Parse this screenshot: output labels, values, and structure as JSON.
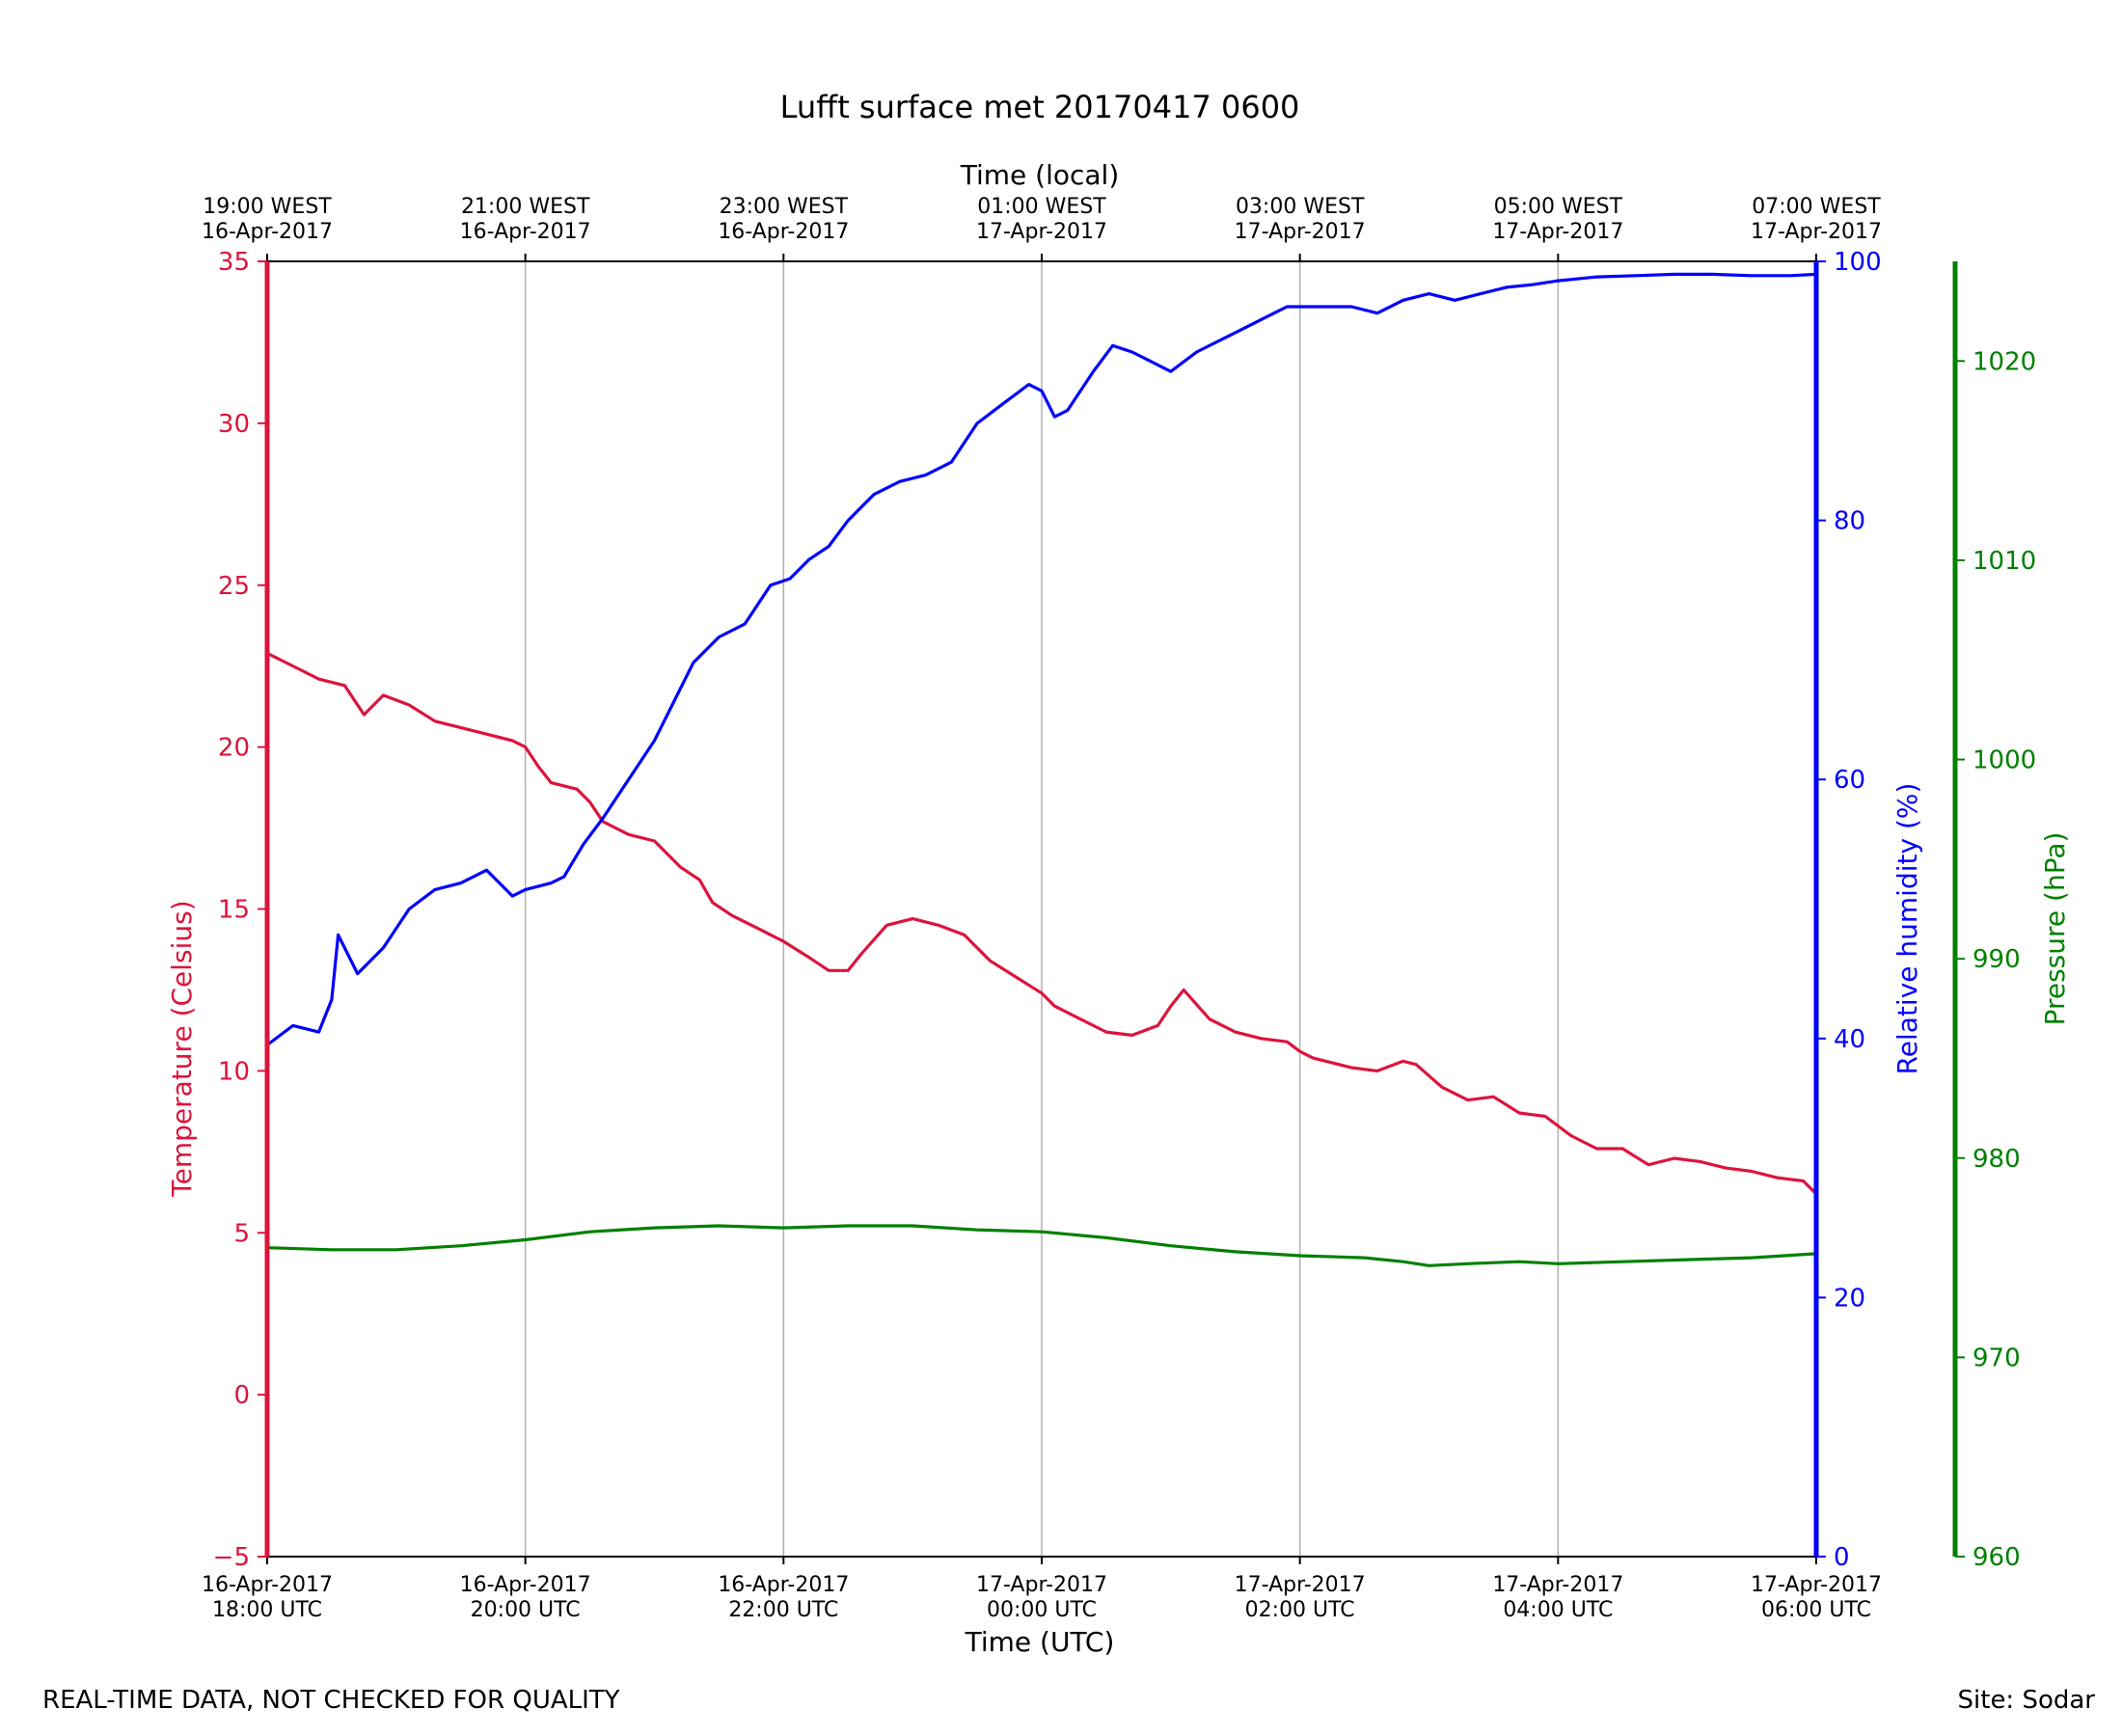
{
  "chart_data": {
    "type": "line",
    "title": "Lufft surface met 20170417 0600",
    "xlabel": "Time (UTC)",
    "x2label": "Time (local)",
    "xlim_hours_utc": [
      18,
      30
    ],
    "x_ticks": [
      {
        "hour": 18,
        "utc": [
          "16-Apr-2017",
          "18:00 UTC"
        ],
        "local": [
          "19:00 WEST",
          "16-Apr-2017"
        ]
      },
      {
        "hour": 20,
        "utc": [
          "16-Apr-2017",
          "20:00 UTC"
        ],
        "local": [
          "21:00 WEST",
          "16-Apr-2017"
        ]
      },
      {
        "hour": 22,
        "utc": [
          "16-Apr-2017",
          "22:00 UTC"
        ],
        "local": [
          "23:00 WEST",
          "16-Apr-2017"
        ]
      },
      {
        "hour": 24,
        "utc": [
          "17-Apr-2017",
          "00:00 UTC"
        ],
        "local": [
          "01:00 WEST",
          "17-Apr-2017"
        ]
      },
      {
        "hour": 26,
        "utc": [
          "17-Apr-2017",
          "02:00 UTC"
        ],
        "local": [
          "03:00 WEST",
          "17-Apr-2017"
        ]
      },
      {
        "hour": 28,
        "utc": [
          "17-Apr-2017",
          "04:00 UTC"
        ],
        "local": [
          "05:00 WEST",
          "17-Apr-2017"
        ]
      },
      {
        "hour": 30,
        "utc": [
          "17-Apr-2017",
          "06:00 UTC"
        ],
        "local": [
          "07:00 WEST",
          "17-Apr-2017"
        ]
      }
    ],
    "grid": "vertical",
    "axes": {
      "temperature": {
        "label": "Temperature (Celsius)",
        "color": "#dc143c",
        "ylim": [
          -5,
          35
        ],
        "ticks": [
          -5,
          0,
          5,
          10,
          15,
          20,
          25,
          30,
          35
        ],
        "tick_labels": [
          "−5",
          "0",
          "5",
          "10",
          "15",
          "20",
          "25",
          "30",
          "35"
        ]
      },
      "humidity": {
        "label": "Relative humidity (%)",
        "color": "#0000ff",
        "ylim": [
          0,
          100
        ],
        "ticks": [
          0,
          20,
          40,
          60,
          80,
          100
        ],
        "tick_labels": [
          "0",
          "20",
          "40",
          "60",
          "80",
          "100"
        ]
      },
      "pressure": {
        "label": "Pressure (hPa)",
        "color": "#008000",
        "ylim": [
          960,
          1025
        ],
        "ticks": [
          960,
          970,
          980,
          990,
          1000,
          1010,
          1020
        ],
        "tick_labels": [
          "960",
          "970",
          "980",
          "990",
          "1000",
          "1010",
          "1020"
        ]
      }
    },
    "series": [
      {
        "key": "temperature",
        "axis": "temperature",
        "color": "#dc143c",
        "points": [
          [
            18.0,
            22.9
          ],
          [
            18.25,
            22.4
          ],
          [
            18.4,
            22.1
          ],
          [
            18.6,
            21.9
          ],
          [
            18.75,
            21.0
          ],
          [
            18.9,
            21.6
          ],
          [
            19.1,
            21.3
          ],
          [
            19.3,
            20.8
          ],
          [
            19.6,
            20.5
          ],
          [
            19.9,
            20.2
          ],
          [
            20.0,
            20.0
          ],
          [
            20.1,
            19.4
          ],
          [
            20.2,
            18.9
          ],
          [
            20.4,
            18.7
          ],
          [
            20.5,
            18.3
          ],
          [
            20.6,
            17.7
          ],
          [
            20.8,
            17.3
          ],
          [
            21.0,
            17.1
          ],
          [
            21.2,
            16.3
          ],
          [
            21.35,
            15.9
          ],
          [
            21.45,
            15.2
          ],
          [
            21.6,
            14.8
          ],
          [
            21.8,
            14.4
          ],
          [
            22.0,
            14.0
          ],
          [
            22.2,
            13.5
          ],
          [
            22.35,
            13.1
          ],
          [
            22.5,
            13.1
          ],
          [
            22.6,
            13.6
          ],
          [
            22.8,
            14.5
          ],
          [
            23.0,
            14.7
          ],
          [
            23.2,
            14.5
          ],
          [
            23.4,
            14.2
          ],
          [
            23.6,
            13.4
          ],
          [
            23.8,
            12.9
          ],
          [
            24.0,
            12.4
          ],
          [
            24.1,
            12.0
          ],
          [
            24.3,
            11.6
          ],
          [
            24.5,
            11.2
          ],
          [
            24.7,
            11.1
          ],
          [
            24.9,
            11.4
          ],
          [
            25.0,
            12.0
          ],
          [
            25.1,
            12.5
          ],
          [
            25.3,
            11.6
          ],
          [
            25.5,
            11.2
          ],
          [
            25.7,
            11.0
          ],
          [
            25.9,
            10.9
          ],
          [
            26.0,
            10.6
          ],
          [
            26.1,
            10.4
          ],
          [
            26.2,
            10.3
          ],
          [
            26.4,
            10.1
          ],
          [
            26.6,
            10.0
          ],
          [
            26.8,
            10.3
          ],
          [
            26.9,
            10.2
          ],
          [
            27.1,
            9.5
          ],
          [
            27.3,
            9.1
          ],
          [
            27.5,
            9.2
          ],
          [
            27.7,
            8.7
          ],
          [
            27.9,
            8.6
          ],
          [
            28.1,
            8.0
          ],
          [
            28.3,
            7.6
          ],
          [
            28.5,
            7.6
          ],
          [
            28.7,
            7.1
          ],
          [
            28.9,
            7.3
          ],
          [
            29.1,
            7.2
          ],
          [
            29.3,
            7.0
          ],
          [
            29.5,
            6.9
          ],
          [
            29.7,
            6.7
          ],
          [
            29.9,
            6.6
          ],
          [
            30.0,
            6.2
          ]
        ]
      },
      {
        "key": "humidity",
        "axis": "humidity",
        "color": "#0000ff",
        "points": [
          [
            18.0,
            39.5
          ],
          [
            18.2,
            41.0
          ],
          [
            18.4,
            40.5
          ],
          [
            18.5,
            43.0
          ],
          [
            18.55,
            48.0
          ],
          [
            18.7,
            45.0
          ],
          [
            18.9,
            47.0
          ],
          [
            19.1,
            50.0
          ],
          [
            19.3,
            51.5
          ],
          [
            19.5,
            52.0
          ],
          [
            19.7,
            53.0
          ],
          [
            19.9,
            51.0
          ],
          [
            20.0,
            51.5
          ],
          [
            20.2,
            52.0
          ],
          [
            20.3,
            52.5
          ],
          [
            20.45,
            55.0
          ],
          [
            20.6,
            57.0
          ],
          [
            20.8,
            60.0
          ],
          [
            21.0,
            63.0
          ],
          [
            21.15,
            66.0
          ],
          [
            21.3,
            69.0
          ],
          [
            21.5,
            71.0
          ],
          [
            21.7,
            72.0
          ],
          [
            21.9,
            75.0
          ],
          [
            22.05,
            75.5
          ],
          [
            22.2,
            77.0
          ],
          [
            22.35,
            78.0
          ],
          [
            22.5,
            80.0
          ],
          [
            22.7,
            82.0
          ],
          [
            22.9,
            83.0
          ],
          [
            23.1,
            83.5
          ],
          [
            23.3,
            84.5
          ],
          [
            23.5,
            87.5
          ],
          [
            23.7,
            89.0
          ],
          [
            23.9,
            90.5
          ],
          [
            24.0,
            90.0
          ],
          [
            24.1,
            88.0
          ],
          [
            24.2,
            88.5
          ],
          [
            24.4,
            91.5
          ],
          [
            24.55,
            93.5
          ],
          [
            24.7,
            93.0
          ],
          [
            24.8,
            92.5
          ],
          [
            25.0,
            91.5
          ],
          [
            25.2,
            93.0
          ],
          [
            25.4,
            94.0
          ],
          [
            25.6,
            95.0
          ],
          [
            25.8,
            96.0
          ],
          [
            25.9,
            96.5
          ],
          [
            26.0,
            96.5
          ],
          [
            26.2,
            96.5
          ],
          [
            26.4,
            96.5
          ],
          [
            26.6,
            96.0
          ],
          [
            26.8,
            97.0
          ],
          [
            27.0,
            97.5
          ],
          [
            27.2,
            97.0
          ],
          [
            27.4,
            97.5
          ],
          [
            27.6,
            98.0
          ],
          [
            27.8,
            98.2
          ],
          [
            28.0,
            98.5
          ],
          [
            28.3,
            98.8
          ],
          [
            28.6,
            98.9
          ],
          [
            28.9,
            99.0
          ],
          [
            29.2,
            99.0
          ],
          [
            29.5,
            98.9
          ],
          [
            29.8,
            98.9
          ],
          [
            30.0,
            99.0
          ]
        ]
      },
      {
        "key": "pressure",
        "axis": "pressure",
        "color": "#008000",
        "points": [
          [
            18.0,
            975.5
          ],
          [
            18.5,
            975.4
          ],
          [
            19.0,
            975.4
          ],
          [
            19.5,
            975.6
          ],
          [
            20.0,
            975.9
          ],
          [
            20.5,
            976.3
          ],
          [
            21.0,
            976.5
          ],
          [
            21.5,
            976.6
          ],
          [
            22.0,
            976.5
          ],
          [
            22.5,
            976.6
          ],
          [
            23.0,
            976.6
          ],
          [
            23.5,
            976.4
          ],
          [
            24.0,
            976.3
          ],
          [
            24.5,
            976.0
          ],
          [
            25.0,
            975.6
          ],
          [
            25.5,
            975.3
          ],
          [
            26.0,
            975.1
          ],
          [
            26.5,
            975.0
          ],
          [
            26.8,
            974.8
          ],
          [
            27.0,
            974.6
          ],
          [
            27.3,
            974.7
          ],
          [
            27.7,
            974.8
          ],
          [
            28.0,
            974.7
          ],
          [
            28.5,
            974.8
          ],
          [
            29.0,
            974.9
          ],
          [
            29.5,
            975.0
          ],
          [
            30.0,
            975.2
          ]
        ]
      }
    ]
  },
  "footer": {
    "left": "REAL-TIME DATA, NOT CHECKED FOR QUALITY",
    "right": "Site: Sodar"
  }
}
